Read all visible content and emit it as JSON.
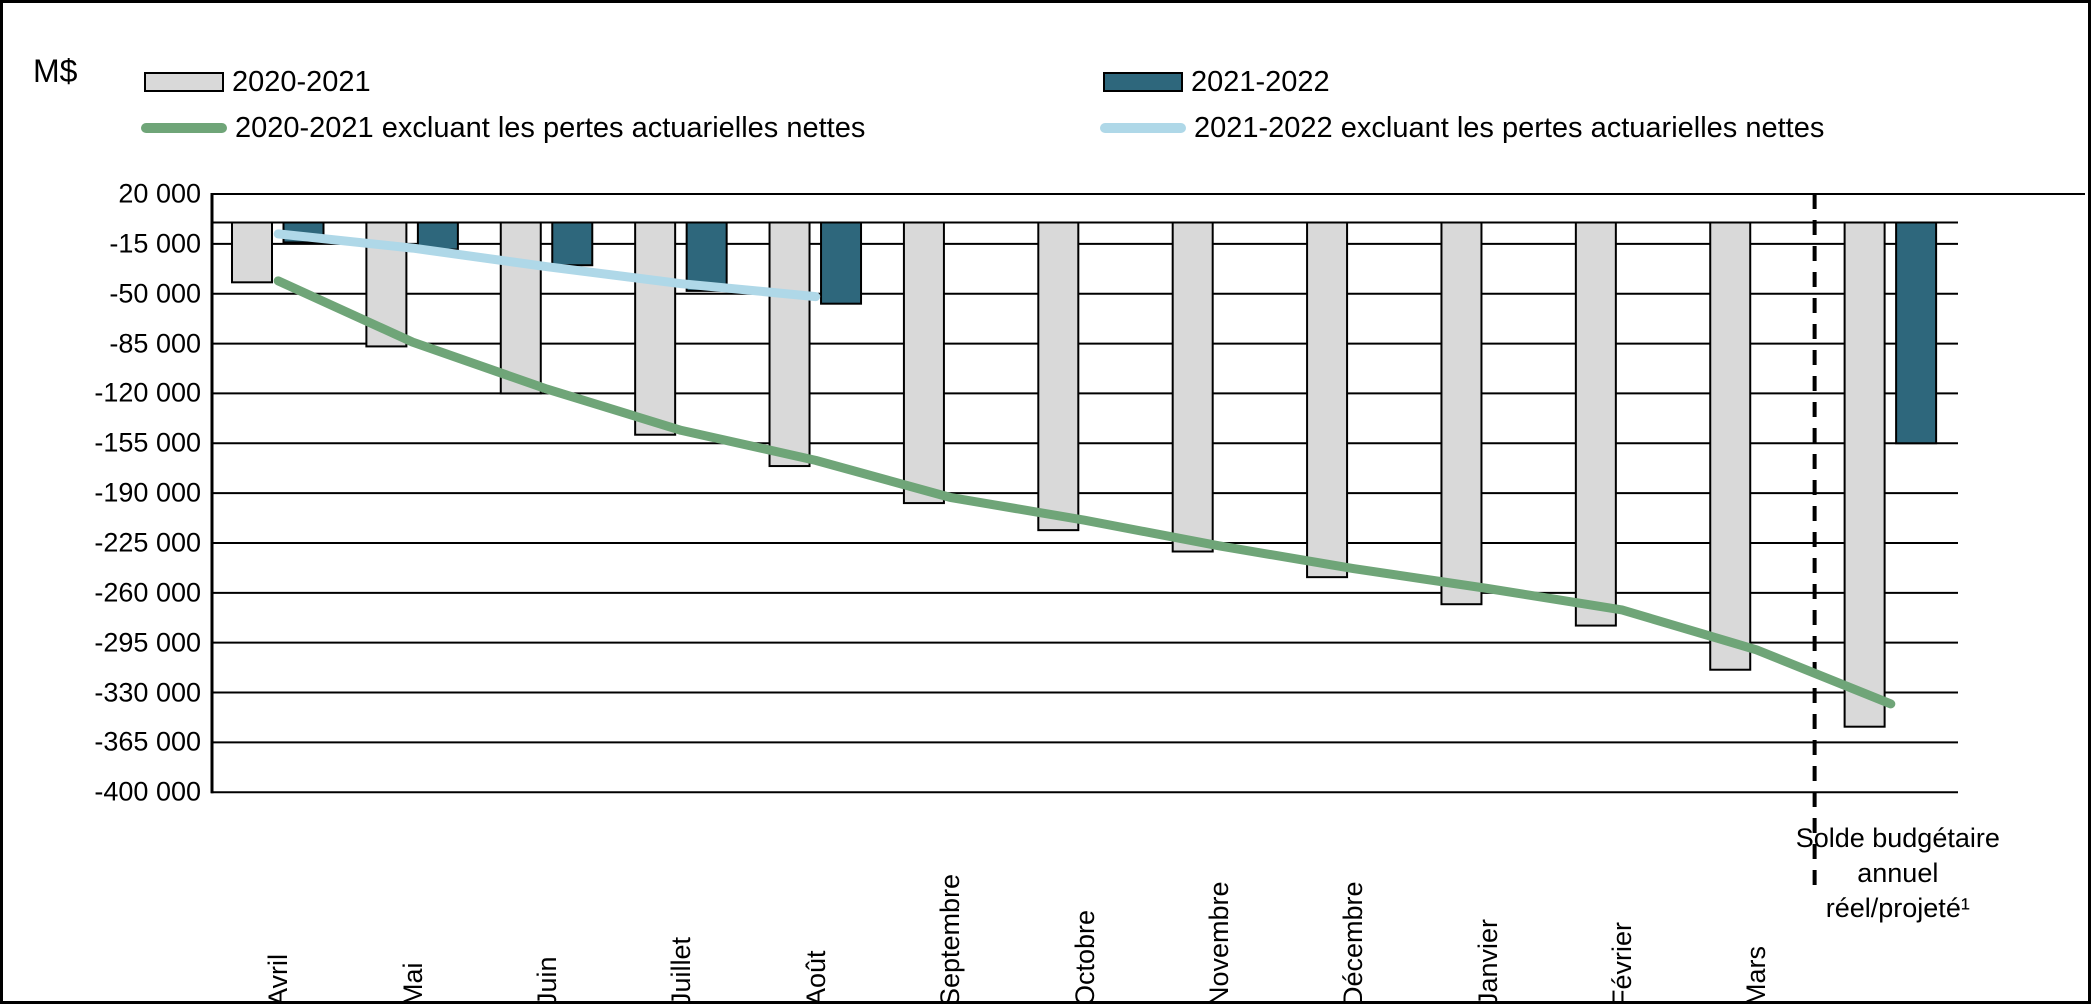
{
  "chart_data": {
    "type": "bar+line",
    "title": "",
    "xlabel": "",
    "ylabel": "M$",
    "unit_label": "M$",
    "ylim": [
      -400000,
      20000
    ],
    "grid": "horizontal-black",
    "legend_position": "top",
    "y_ticks": [
      {
        "label": "20 000",
        "value": 20000
      },
      {
        "label": "-15 000",
        "value": -15000
      },
      {
        "label": "-50 000",
        "value": -50000
      },
      {
        "label": "-85 000",
        "value": -85000
      },
      {
        "label": "-120 000",
        "value": -120000
      },
      {
        "label": "-155 000",
        "value": -155000
      },
      {
        "label": "-190 000",
        "value": -190000
      },
      {
        "label": "-225 000",
        "value": -225000
      },
      {
        "label": "-260 000",
        "value": -260000
      },
      {
        "label": "-295 000",
        "value": -295000
      },
      {
        "label": "-330 000",
        "value": -330000
      },
      {
        "label": "-365 000",
        "value": -365000
      },
      {
        "label": "-400 000",
        "value": -400000
      }
    ],
    "categories": [
      "Avril",
      "Mai",
      "Juin",
      "Juillet",
      "Août",
      "Septembre",
      "Octobre",
      "Novembre",
      "Décembre",
      "Janvier",
      "Février",
      "Mars",
      "Solde budgétaire annuel réel/projeté¹"
    ],
    "separator_before_category_index": 12,
    "series": [
      {
        "name": "2020-2021",
        "type": "bar",
        "color": "#D9D9D9",
        "values": [
          -42000,
          -87000,
          -120000,
          -149000,
          -171000,
          -197000,
          -216000,
          -231000,
          -249000,
          -268000,
          -283000,
          -314000,
          -354000
        ]
      },
      {
        "name": "2021-2022",
        "type": "bar",
        "color": "#2E677C",
        "values": [
          -14000,
          -19000,
          -30000,
          -48000,
          -57000,
          null,
          null,
          null,
          null,
          null,
          null,
          null,
          -155000
        ]
      },
      {
        "name": "2020-2021 excluant les pertes actuarielles nettes",
        "type": "line",
        "color": "#6FA578",
        "values": [
          -41000,
          -84000,
          -117000,
          -146000,
          -167000,
          -193000,
          -209000,
          -227000,
          -243000,
          -257000,
          -272000,
          -300000,
          -338000
        ]
      },
      {
        "name": "2021-2022 excluant les pertes actuarielles nettes",
        "type": "line",
        "color": "#AFD8E8",
        "values": [
          -8000,
          -18000,
          -31000,
          -43000,
          -52000,
          null,
          null,
          null,
          null,
          null,
          null,
          null,
          null
        ]
      }
    ]
  }
}
